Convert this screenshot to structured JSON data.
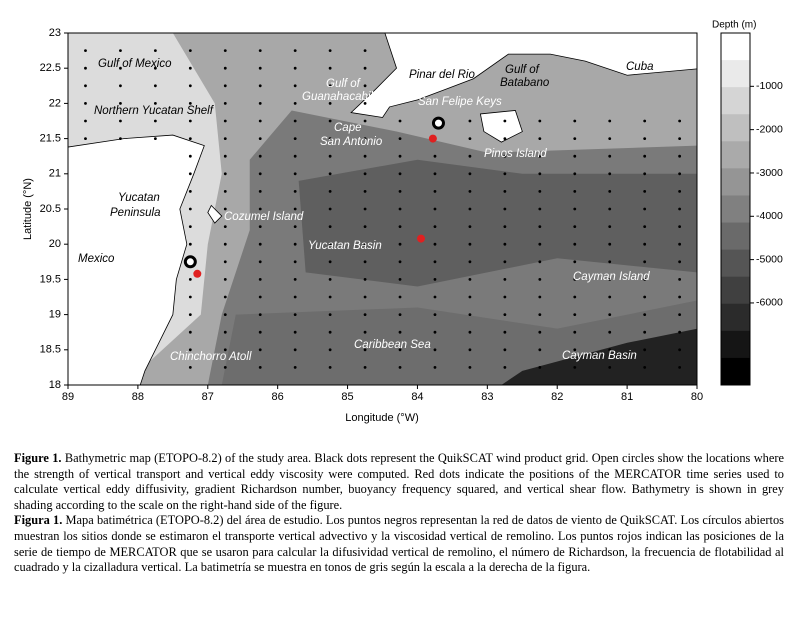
{
  "map": {
    "xlabel": "Longitude (°W)",
    "ylabel": "Latitude (°N)",
    "xticks": [
      "89",
      "88",
      "87",
      "86",
      "85",
      "84",
      "83",
      "82",
      "81",
      "80"
    ],
    "yticks": [
      "23",
      "22.5",
      "22",
      "21.5",
      "21",
      "20.5",
      "20",
      "19.5",
      "19",
      "18.5",
      "18"
    ],
    "places": [
      "Gulf of Mexico",
      "Northern Yucatan Shelf",
      "Gulf of",
      "Guanahacabibes",
      "Pinar del Rio",
      "Gulf of",
      "Batabano",
      "Cuba",
      "San Felipe Keys",
      "Cape",
      "San Antonio",
      "Pinos Island",
      "Yucatan",
      "Peninsula",
      "Cozumel Island",
      "Yucatan Basin",
      "Mexico",
      "Cayman Island",
      "Caribbean Sea",
      "Chinchorro Atoll",
      "Cayman Basin"
    ],
    "colorbar": {
      "title": "Depth (m)",
      "labels": [
        "-1000",
        "-2000",
        "-3000",
        "-4000",
        "-5000",
        "-6000"
      ]
    }
  },
  "caption": [
    {
      "label": "Figure 1.",
      "text": "Bathymetric map (ETOPO-8.2) of the study area. Black dots represent the QuikSCAT wind product grid. Open circles show the locations where the strength of vertical transport and vertical eddy viscosity were computed. Red dots indicate the positions of the MERCATOR time series used to calculate vertical eddy diffusivity, gradient Richardson number, buoyancy frequency squared, and vertical shear flow. Bathymetry is shown in grey shading according to the scale on the right-hand side of the figure."
    },
    {
      "label": "Figura 1.",
      "text": "Mapa batimétrica (ETOPO-8.2) del área de estudio. Los puntos negros representan la red de datos de viento de QuikSCAT. Los círculos abiertos muestran los sitios donde se estimaron el transporte vertical advectivo y la viscosidad vertical de remolino. Los puntos rojos indican las posiciones de la serie de tiempo de MERCATOR que se usaron para calcular la difusividad vertical de remolino, el número de Richardson, la frecuencia de flotabilidad al cuadrado y la cizalladura vertical. La batimetría se muestra en tonos de gris según la escala a la derecha de la figura."
    }
  ]
}
